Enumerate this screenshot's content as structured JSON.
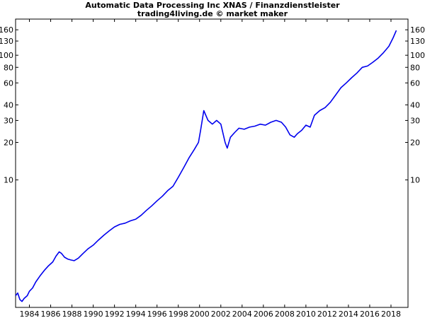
{
  "chart_data": {
    "type": "line",
    "title": "Automatic Data Processing Inc XNAS / Finanzdienstleister",
    "subtitle": "trading4living.de © market maker",
    "xlabel": "",
    "ylabel": "",
    "yscale": "log",
    "ylim": [
      0.95,
      195
    ],
    "xlim": [
      1982.7,
      2019.6
    ],
    "grid": false,
    "legend": "none",
    "line_color": "#0000ee",
    "x_ticks": [
      "1984",
      "1986",
      "1988",
      "1990",
      "1992",
      "1994",
      "1996",
      "1998",
      "2000",
      "2002",
      "2004",
      "2006",
      "2008",
      "2010",
      "2012",
      "2014",
      "2016",
      "2018"
    ],
    "y_ticks": [
      "10",
      "20",
      "30",
      "40",
      "60",
      "80",
      "100",
      "130",
      "160"
    ],
    "series": [
      {
        "x": [
          1982.7,
          1982.9,
          1983.1,
          1983.3,
          1983.5,
          1983.8,
          1984.0,
          1984.3,
          1984.6,
          1985.0,
          1985.4,
          1985.8,
          1986.2,
          1986.5,
          1986.8,
          1987.0,
          1987.3,
          1987.6,
          1987.9,
          1988.2,
          1988.6,
          1989.0,
          1989.5,
          1990.0,
          1990.5,
          1991.0,
          1991.5,
          1992.0,
          1992.5,
          1993.0,
          1993.5,
          1994.0,
          1994.5,
          1995.0,
          1995.5,
          1996.0,
          1996.5,
          1997.0,
          1997.5,
          1998.0,
          1998.5,
          1999.0,
          1999.5,
          1999.9,
          2000.1,
          2000.4,
          2000.8,
          2001.2,
          2001.6,
          2002.0,
          2002.4,
          2002.6,
          2002.9,
          2003.3,
          2003.7,
          2004.2,
          2004.7,
          2005.2,
          2005.7,
          2006.2,
          2006.7,
          2007.2,
          2007.7,
          2008.1,
          2008.5,
          2008.9,
          2009.2,
          2009.6,
          2010.0,
          2010.4,
          2010.8,
          2011.3,
          2011.8,
          2012.3,
          2012.8,
          2013.3,
          2013.8,
          2014.3,
          2014.8,
          2015.3,
          2015.8,
          2016.3,
          2016.8,
          2017.3,
          2017.8,
          2018.2,
          2018.5
        ],
        "values": [
          1.18,
          1.24,
          1.1,
          1.06,
          1.12,
          1.18,
          1.28,
          1.36,
          1.52,
          1.7,
          1.88,
          2.05,
          2.2,
          2.45,
          2.65,
          2.58,
          2.4,
          2.32,
          2.28,
          2.25,
          2.36,
          2.55,
          2.8,
          3.0,
          3.3,
          3.6,
          3.9,
          4.2,
          4.4,
          4.5,
          4.7,
          4.85,
          5.2,
          5.7,
          6.2,
          6.8,
          7.4,
          8.2,
          8.9,
          10.5,
          12.5,
          15.0,
          17.5,
          20.0,
          25.0,
          36.0,
          30.0,
          28.0,
          30.0,
          28.0,
          20.0,
          18.0,
          22.0,
          24.0,
          26.0,
          25.5,
          26.5,
          27.0,
          28.0,
          27.5,
          29.0,
          30.0,
          29.0,
          26.5,
          23.0,
          22.0,
          23.5,
          25.0,
          27.5,
          26.5,
          33.0,
          36.0,
          38.0,
          42.0,
          48.0,
          55.0,
          60.0,
          66.0,
          72.0,
          80.0,
          82.0,
          88.0,
          95.0,
          105.0,
          118.0,
          138.0,
          158.0
        ]
      }
    ]
  }
}
